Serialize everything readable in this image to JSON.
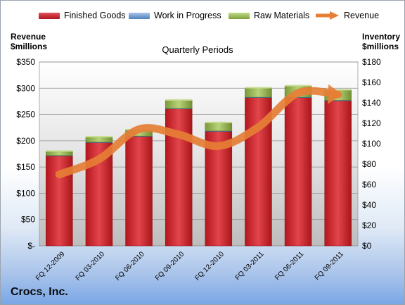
{
  "chart_data": {
    "type": "bar",
    "title": "Quarterly Periods",
    "ylabel_left": "Revenue\n$millions",
    "ylabel_right": "Inventory\n$millions",
    "categories": [
      "FQ 12-2009",
      "FQ 03-2010",
      "FQ 06-2010",
      "FQ 09-2010",
      "FQ 12-2010",
      "FQ 03-2011",
      "FQ 06-2011",
      "FQ 09-2011"
    ],
    "series": [
      {
        "name": "Finished Goods",
        "axis": "right",
        "color": "#c0272d",
        "values": [
          88,
          101,
          107,
          134,
          112,
          145,
          145,
          142
        ]
      },
      {
        "name": "Work in Progress",
        "axis": "right",
        "color": "#4f81bd",
        "values": [
          0.5,
          0.5,
          0.5,
          0.5,
          0.5,
          0.5,
          0.5,
          0.5
        ]
      },
      {
        "name": "Raw Materials",
        "axis": "right",
        "color": "#9bbb59",
        "values": [
          4,
          5,
          6,
          8,
          8,
          9,
          11,
          10
        ]
      },
      {
        "name": "Revenue",
        "axis": "left",
        "type": "line",
        "color": "#e67e35",
        "values": [
          136,
          165,
          222,
          212,
          190,
          226,
          291,
          288
        ]
      }
    ],
    "ylim_left": [
      0,
      350
    ],
    "ylim_right": [
      0,
      180
    ],
    "left_ticks": [
      "$-",
      "$50",
      "$100",
      "$150",
      "$200",
      "$250",
      "$300",
      "$350"
    ],
    "right_ticks": [
      "$0",
      "$20",
      "$40",
      "$60",
      "$80",
      "$100",
      "$120",
      "$140",
      "$160",
      "$180"
    ],
    "legend_position": "top",
    "grid": true
  },
  "company": "Crocs, Inc."
}
